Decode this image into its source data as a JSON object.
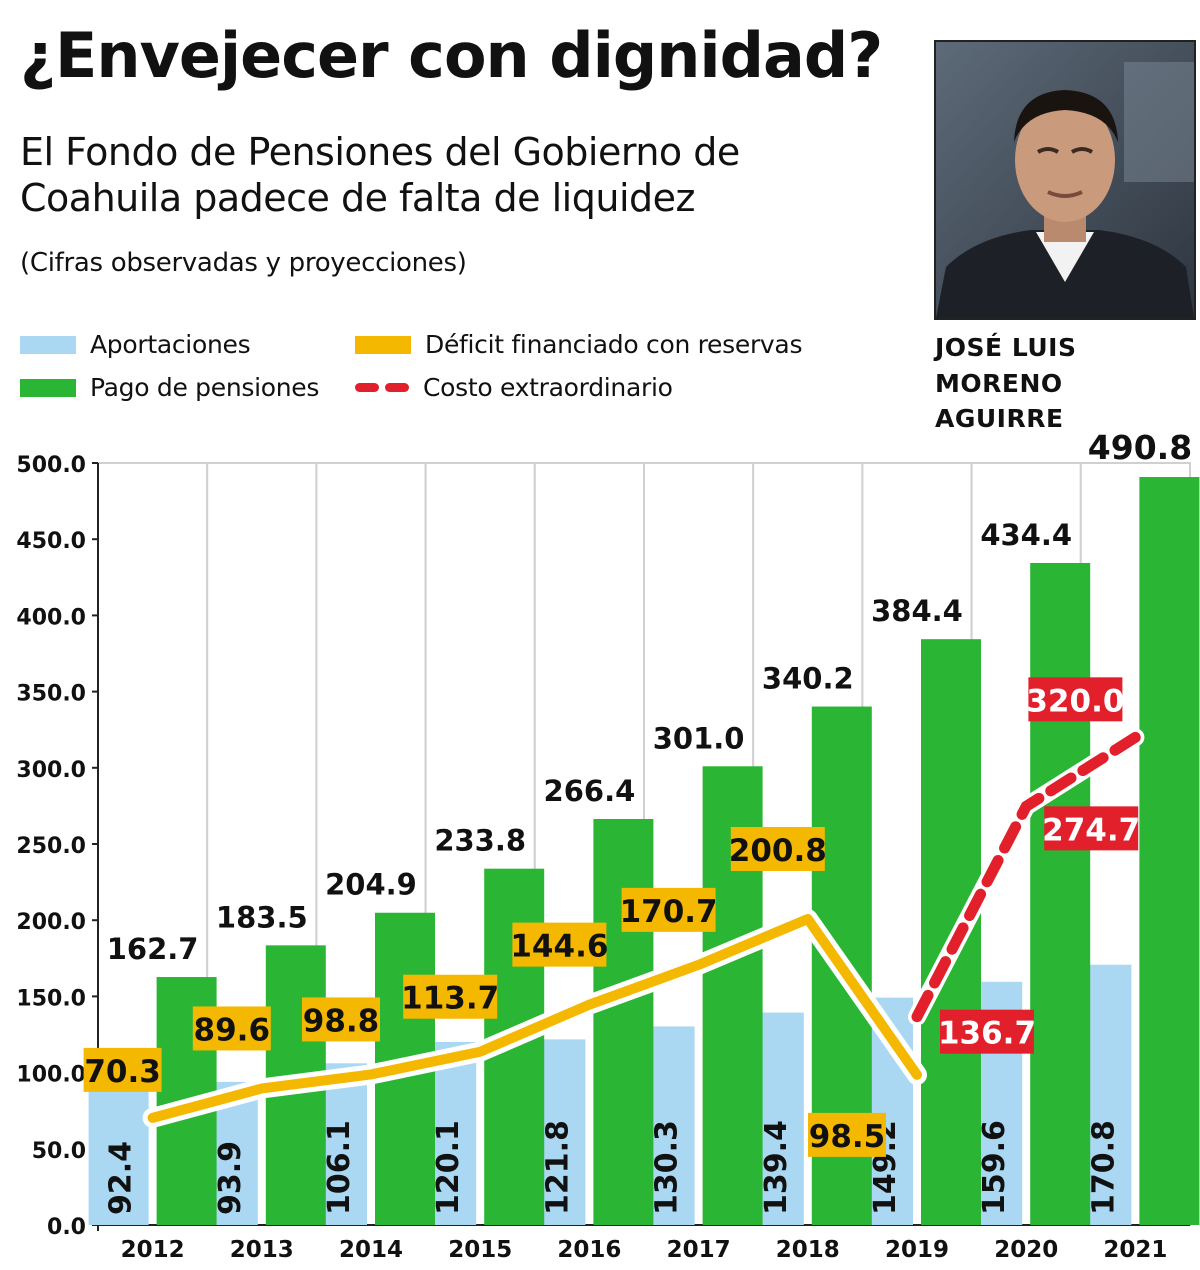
{
  "header": {
    "title": "¿Envejecer con dignidad?",
    "subtitle": "El Fondo de Pensiones del Gobierno de Coahuila padece de falta de liquidez",
    "note": "(Cifras observadas y proyecciones)"
  },
  "legend": {
    "aportaciones": "Aportaciones",
    "pago": "Pago de pensiones",
    "deficit": "Déficit financiado con reservas",
    "costo": "Costo extraordinario"
  },
  "person": {
    "name_line1": "JOSÉ LUIS",
    "name_line2": "MORENO AGUIRRE"
  },
  "colors": {
    "aportaciones": "#aad8f2",
    "pago": "#2bb534",
    "deficit": "#f5b800",
    "costo": "#e2202c"
  },
  "chart_data": {
    "type": "bar",
    "categories": [
      "2012",
      "2013",
      "2014",
      "2015",
      "2016",
      "2017",
      "2018",
      "2019",
      "2020",
      "2021"
    ],
    "ylim": [
      0,
      500
    ],
    "yticks": [
      "0.0",
      "50.0",
      "100.0",
      "150.0",
      "200.0",
      "250.0",
      "300.0",
      "350.0",
      "400.0",
      "450.0",
      "500.0"
    ],
    "grid": "vertical category separators",
    "series": [
      {
        "name": "Aportaciones",
        "type": "bar",
        "values": [
          92.4,
          93.9,
          106.1,
          120.1,
          121.8,
          130.3,
          139.4,
          149.2,
          159.6,
          170.8
        ]
      },
      {
        "name": "Pago de pensiones",
        "type": "bar",
        "values": [
          162.7,
          183.5,
          204.9,
          233.8,
          266.4,
          301.0,
          340.2,
          384.4,
          434.4,
          490.8
        ]
      },
      {
        "name": "Déficit financiado con reservas",
        "type": "line",
        "values": [
          70.3,
          89.6,
          98.8,
          113.7,
          144.6,
          170.7,
          200.8,
          98.5,
          null,
          null
        ]
      },
      {
        "name": "Costo extraordinario",
        "type": "line",
        "style": "dashed",
        "values": [
          null,
          null,
          null,
          null,
          null,
          null,
          null,
          136.7,
          274.7,
          320.0
        ]
      }
    ]
  }
}
